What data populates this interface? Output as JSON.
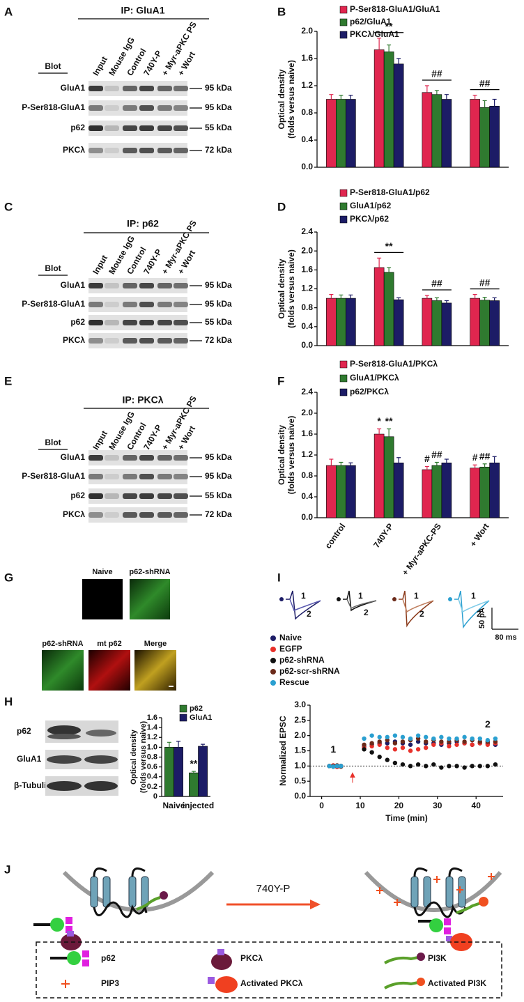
{
  "blots": [
    {
      "label": "A",
      "ip": "IP: GluA1",
      "blot": "Blot",
      "lanes": [
        "Input",
        "Mouse IgG",
        "Control",
        "740Y-P",
        "+ Myr-aPKC PS",
        "+ Wort"
      ],
      "rows": [
        {
          "name": "GluA1",
          "kda": "95 kDa"
        },
        {
          "name": "P-Ser818-GluA1",
          "kda": "95 kDa"
        },
        {
          "name": "p62",
          "kda": "55 kDa"
        },
        {
          "name": "PKCλ",
          "kda": "72 kDa"
        }
      ]
    },
    {
      "label": "C",
      "ip": "IP: p62",
      "blot": "Blot",
      "lanes": [
        "Input",
        "Mouse IgG",
        "Control",
        "740Y-P",
        "+ Myr-aPKC PS",
        "+ Wort"
      ],
      "rows": [
        {
          "name": "GluA1",
          "kda": "95 kDa"
        },
        {
          "name": "P-Ser818-GluA1",
          "kda": "95 kDa"
        },
        {
          "name": "p62",
          "kda": "55 kDa"
        },
        {
          "name": "PKCλ",
          "kda": "72 kDa"
        }
      ]
    },
    {
      "label": "E",
      "ip": "IP: PKCλ",
      "blot": "Blot",
      "lanes": [
        "Input",
        "Mouse IgG",
        "Control",
        "740Y-P",
        "+ Myr-aPKC PS",
        "+ Wort"
      ],
      "rows": [
        {
          "name": "GluA1",
          "kda": "95 kDa"
        },
        {
          "name": "P-Ser818-GluA1",
          "kda": "95 kDa"
        },
        {
          "name": "p62",
          "kda": "55 kDa"
        },
        {
          "name": "PKCλ",
          "kda": "72 kDa"
        }
      ]
    }
  ],
  "chart_data": [
    {
      "label": "B",
      "type": "bar",
      "categories": [
        null,
        null,
        null,
        null
      ],
      "ylabel": [
        "Optical density",
        "(folds versus naive)"
      ],
      "ylim": [
        0,
        2.0
      ],
      "yticks": [
        {
          "value": 0,
          "label": "0.0"
        },
        0.4,
        0.8,
        1.2,
        1.6,
        {
          "value": 2,
          "label": "2.0"
        }
      ],
      "series": [
        {
          "name": "P-Ser818-GluA1/GluA1",
          "color": "#e0264f",
          "values": [
            1.0,
            1.73,
            1.1,
            1.0
          ],
          "errors": [
            0.07,
            0.17,
            0.1,
            0.06
          ]
        },
        {
          "name": "p62/GluA1",
          "color": "#2f7a2f",
          "values": [
            1.0,
            1.7,
            1.07,
            0.88
          ],
          "errors": [
            0.06,
            0.1,
            0.06,
            0.1
          ]
        },
        {
          "name": "PKCλ/GluA1",
          "color": "#1c1c66",
          "values": [
            1.0,
            1.52,
            1.0,
            0.9
          ],
          "errors": [
            0.06,
            0.08,
            0.07,
            0.1
          ]
        }
      ],
      "annotations": [
        {
          "text": "**",
          "category": 1,
          "series": 1
        },
        {
          "text": "##",
          "category": 2,
          "series": 1
        },
        {
          "text": "##",
          "category": 3,
          "series": 1
        }
      ],
      "annotation_lines": true
    },
    {
      "label": "D",
      "type": "bar",
      "categories": [
        null,
        null,
        null,
        null
      ],
      "ylabel": [
        "Optical density",
        "(folds versus naive)"
      ],
      "ylim": [
        0,
        2.4
      ],
      "yticks": [
        {
          "value": 0,
          "label": "0.0"
        },
        0.4,
        0.8,
        1.2,
        1.6,
        {
          "value": 2,
          "label": "2.0"
        },
        2.4
      ],
      "series": [
        {
          "name": "P-Ser818-GluA1/p62",
          "color": "#e0264f",
          "values": [
            1.0,
            1.65,
            1.0,
            1.0
          ],
          "errors": [
            0.08,
            0.2,
            0.06,
            0.08
          ]
        },
        {
          "name": "GluA1/p62",
          "color": "#2f7a2f",
          "values": [
            1.0,
            1.55,
            0.95,
            0.96
          ],
          "errors": [
            0.07,
            0.1,
            0.06,
            0.06
          ]
        },
        {
          "name": "PKCλ/p62",
          "color": "#1c1c66",
          "values": [
            1.0,
            0.97,
            0.9,
            0.95
          ],
          "errors": [
            0.07,
            0.04,
            0.05,
            0.06
          ]
        }
      ],
      "annotations": [
        {
          "text": "**",
          "category": 1,
          "series": 1
        },
        {
          "text": "##",
          "category": 2,
          "series": 1
        },
        {
          "text": "##",
          "category": 3,
          "series": 1
        }
      ],
      "annotation_lines": true
    },
    {
      "label": "F",
      "type": "bar",
      "categories": [
        "control",
        "740Y-P",
        "+ Myr-aPKC-PS",
        "+ Wort"
      ],
      "rotate_labels": true,
      "ylabel": [
        "Optical density",
        "(folds versus naive)"
      ],
      "ylim": [
        0,
        2.4
      ],
      "yticks": [
        {
          "value": 0,
          "label": "0.0"
        },
        0.4,
        0.8,
        1.2,
        1.6,
        {
          "value": 2,
          "label": "2.0"
        },
        2.4
      ],
      "series": [
        {
          "name": "P-Ser818-GluA1/PKCλ",
          "color": "#e0264f",
          "values": [
            1.0,
            1.6,
            0.92,
            0.95
          ],
          "errors": [
            0.12,
            0.1,
            0.06,
            0.06
          ]
        },
        {
          "name": "GluA1/PKCλ",
          "color": "#2f7a2f",
          "values": [
            1.0,
            1.55,
            1.0,
            0.97
          ],
          "errors": [
            0.06,
            0.15,
            0.06,
            0.06
          ]
        },
        {
          "name": "p62/PKCλ",
          "color": "#1c1c66",
          "values": [
            1.0,
            1.05,
            1.05,
            1.05
          ],
          "errors": [
            0.05,
            0.1,
            0.07,
            0.12
          ]
        }
      ],
      "annotations": [
        {
          "text": "*",
          "category": 1,
          "series": 0
        },
        {
          "text": "**",
          "category": 1,
          "series": 1
        },
        {
          "text": "#",
          "category": 2,
          "series": 0
        },
        {
          "text": "##",
          "category": 2,
          "series": 1
        },
        {
          "text": "#",
          "category": 3,
          "series": 0
        },
        {
          "text": "##",
          "category": 3,
          "series": 1
        }
      ],
      "annotation_lines": false
    },
    {
      "label": "H",
      "type": "bar",
      "categories": [
        "Naive",
        "injected"
      ],
      "ylabel": [
        "Optical density",
        "(folds versus naive)"
      ],
      "ylim": [
        0,
        1.6
      ],
      "yticks": [
        0,
        0.2,
        0.4,
        0.6,
        0.8,
        {
          "value": 1,
          "label": "1.0"
        },
        1.2,
        1.4,
        1.6
      ],
      "series": [
        {
          "name": "p62",
          "color": "#2f7a2f",
          "values": [
            1.0,
            0.48
          ],
          "errors": [
            0.1,
            0.03
          ]
        },
        {
          "name": "GluA1",
          "color": "#1c1c66",
          "values": [
            1.0,
            1.02
          ],
          "errors": [
            0.12,
            0.04
          ]
        }
      ],
      "annotations": [
        {
          "text": "**",
          "category": 1,
          "series": 0
        }
      ],
      "annotation_lines": false
    },
    {
      "label": "I",
      "type": "scatter",
      "xlabel": "Time (min)",
      "ylabel": "Normalized EPSC",
      "xlim": [
        -3,
        47
      ],
      "xticks": [
        0,
        10,
        20,
        30,
        40
      ],
      "ylim": [
        0,
        3
      ],
      "yticks": [
        {
          "value": 0,
          "label": "0.0"
        },
        0.5,
        {
          "value": 1,
          "label": "1.0"
        },
        1.5,
        {
          "value": 2,
          "label": "2.0"
        },
        2.5,
        {
          "value": 3,
          "label": "3.0"
        }
      ],
      "hline": 1,
      "stimulus_x": 8,
      "x": [
        2,
        3,
        4,
        5,
        11,
        13,
        15,
        17,
        19,
        21,
        23,
        25,
        27,
        29,
        31,
        33,
        35,
        37,
        39,
        41,
        43,
        45
      ],
      "series": [
        {
          "name": "Naive",
          "color": "#1c1c66",
          "values": [
            1.0,
            1.0,
            0.98,
            1.0,
            1.65,
            1.7,
            1.75,
            1.75,
            1.8,
            1.75,
            1.7,
            1.8,
            1.75,
            1.75,
            1.7,
            1.75,
            1.8,
            1.75,
            1.7,
            1.75,
            1.75,
            1.7
          ]
        },
        {
          "name": "EGFP",
          "color": "#e8302a",
          "values": [
            1.0,
            1.02,
            0.97,
            1.0,
            1.6,
            1.65,
            1.7,
            1.6,
            1.55,
            1.6,
            1.5,
            1.55,
            1.6,
            1.7,
            1.75,
            1.65,
            1.7,
            1.75,
            1.7,
            1.75,
            1.7,
            1.75
          ]
        },
        {
          "name": "p62-shRNA",
          "color": "#111111",
          "values": [
            1.0,
            0.98,
            1.0,
            1.0,
            1.55,
            1.45,
            1.3,
            1.2,
            1.1,
            1.05,
            1.0,
            1.05,
            1.0,
            1.05,
            0.95,
            1.0,
            1.0,
            0.95,
            1.0,
            1.0,
            1.0,
            1.05
          ]
        },
        {
          "name": "p62-scr-shRNA",
          "color": "#6b2a1a",
          "values": [
            1.0,
            1.0,
            1.02,
            0.98,
            1.7,
            1.75,
            1.8,
            1.85,
            1.75,
            1.8,
            1.85,
            1.9,
            1.8,
            1.85,
            1.8,
            1.8,
            1.85,
            1.8,
            1.85,
            1.8,
            1.8,
            1.8
          ]
        },
        {
          "name": "Rescue",
          "color": "#2a9fd0",
          "values": [
            1.0,
            0.98,
            1.0,
            1.0,
            1.9,
            2.0,
            1.95,
            1.95,
            2.0,
            1.95,
            1.9,
            2.0,
            1.95,
            1.9,
            1.95,
            1.9,
            1.9,
            1.95,
            1.9,
            1.9,
            1.85,
            1.9
          ]
        }
      ],
      "annotations": [
        {
          "text": "1",
          "x": 3
        },
        {
          "text": "2",
          "x": 43
        }
      ]
    }
  ],
  "panel_g": {
    "label": "G",
    "top": [
      "Naive",
      "p62-shRNA"
    ],
    "bottom": [
      "p62-shRNA",
      "mt p62",
      "Merge"
    ]
  },
  "panel_h": {
    "rows": [
      "p62",
      "GluA1",
      "β-Tubulin"
    ]
  },
  "panel_i": {
    "trace_labels": [
      "1",
      "2"
    ],
    "scale_y": "50 pA",
    "scale_x": "80 ms"
  },
  "panel_j": {
    "label": "J",
    "arrow": "740Y-P",
    "legend": [
      "p62",
      "PKCλ",
      "PI3K",
      "PIP3",
      "Activated PKCλ",
      "Activated PI3K"
    ]
  }
}
